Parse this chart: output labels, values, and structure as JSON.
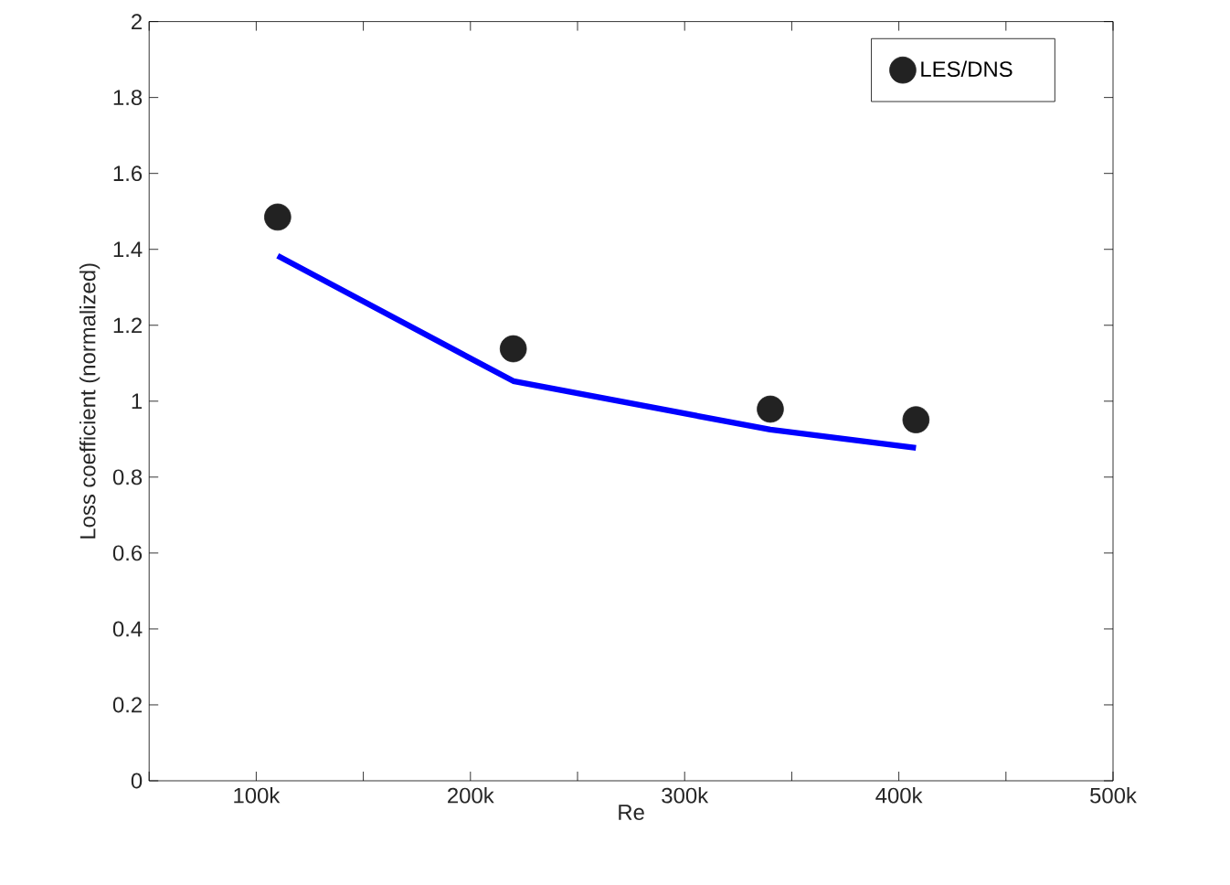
{
  "chart_data": {
    "type": "line",
    "xlabel": "Re",
    "ylabel": "Loss coefficient (normalized)",
    "xlim": [
      50000,
      500000
    ],
    "xticks": [
      {
        "value": 50000,
        "label": null
      },
      {
        "value": 100000,
        "label": "100k"
      },
      {
        "value": 150000,
        "label": null
      },
      {
        "value": 200000,
        "label": "200k"
      },
      {
        "value": 250000,
        "label": null
      },
      {
        "value": 300000,
        "label": "300k"
      },
      {
        "value": 350000,
        "label": null
      },
      {
        "value": 400000,
        "label": "400k"
      },
      {
        "value": 450000,
        "label": null
      },
      {
        "value": 500000,
        "label": "500k"
      }
    ],
    "ylim": [
      0,
      2
    ],
    "yticks": [
      0,
      0.2,
      0.4,
      0.6,
      0.8,
      1,
      1.2,
      1.4,
      1.6,
      1.8,
      2
    ],
    "legend": "top right",
    "grid": false,
    "series": [
      {
        "color": "#0000ff",
        "marker": "none",
        "line_style": "solid",
        "x": [
          110000,
          220000,
          340000,
          408000
        ],
        "values": [
          1.383,
          1.053,
          0.925,
          0.877
        ]
      },
      {
        "type": "scatter",
        "name": "LES/DNS",
        "color": "#222222",
        "marker": "circle",
        "x": [
          110000,
          220000,
          340000,
          408000
        ],
        "values": [
          1.485,
          1.138,
          0.979,
          0.951
        ]
      }
    ]
  }
}
